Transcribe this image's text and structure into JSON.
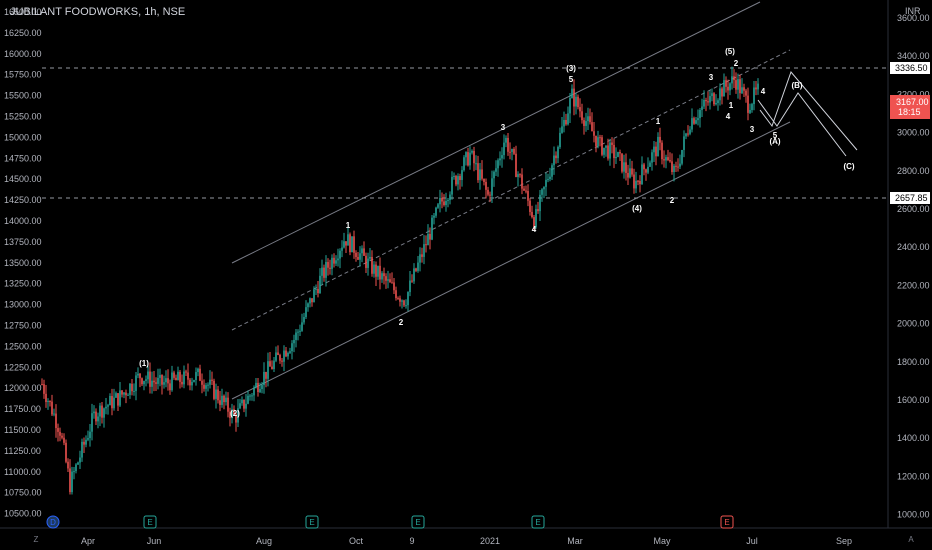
{
  "header": {
    "symbol_title": "JUBILANT FOODWORKS, 1h, NSE"
  },
  "currency_label": "INR",
  "left_axis_ticks": [
    "16500.00",
    "16250.00",
    "16000.00",
    "15750.00",
    "15500.00",
    "15250.00",
    "15000.00",
    "14750.00",
    "14500.00",
    "14250.00",
    "14000.00",
    "13750.00",
    "13500.00",
    "13250.00",
    "13000.00",
    "12750.00",
    "12500.00",
    "12250.00",
    "12000.00",
    "11750.00",
    "11500.00",
    "11250.00",
    "11000.00",
    "10750.00",
    "10500.00"
  ],
  "right_axis_ticks": [
    "3600.00",
    "3400.00",
    "3200.00",
    "3000.00",
    "2800.00",
    "2600.00",
    "2400.00",
    "2200.00",
    "2000.00",
    "1800.00",
    "1600.00",
    "1400.00",
    "1200.00",
    "1000.00"
  ],
  "time_axis_labels": [
    "Apr",
    "Jun",
    "Aug",
    "Oct",
    "9",
    "2021",
    "Mar",
    "May",
    "Jul",
    "Sep"
  ],
  "price_labels": {
    "upper_level": "3336.50",
    "current_price": "3167.00",
    "countdown": "18:15",
    "lower_level": "2657.85"
  },
  "event_badges": [
    "D",
    "E",
    "E",
    "E",
    "E",
    "E"
  ],
  "scale_buttons": {
    "left": "Z",
    "right": "A"
  },
  "wave_labels": [
    "(1)",
    "(2)",
    "1",
    "2",
    "3",
    "4",
    "5",
    "(3)",
    "(4)",
    "1",
    "2",
    "3",
    "4",
    "5",
    "(5)",
    "1",
    "2",
    "3",
    "4",
    "5",
    "(A)",
    "(B)",
    "(C)"
  ],
  "colors": {
    "background": "#000000",
    "up_candle": "#26a69a",
    "down_candle": "#ef5350",
    "current_price_bg": "#ef5350",
    "label_bg": "#ffffff",
    "channel": "#787b86",
    "projection": "#d1d4dc"
  },
  "chart_data": {
    "type": "candlestick",
    "title": "JUBILANT FOODWORKS, 1h, NSE",
    "y_left_range": [
      10400,
      16800
    ],
    "y_right_range": [
      930,
      3700
    ],
    "x_labels": [
      "Apr",
      "Jun",
      "Aug",
      "Oct",
      "9",
      "2021",
      "Mar",
      "May",
      "Jul",
      "Sep"
    ],
    "price_path": [
      [
        "Mar-2020",
        12050
      ],
      [
        "Apr-2020",
        10850
      ],
      [
        "May-2020",
        11800
      ],
      [
        "Jun-2020",
        12150
      ],
      [
        "Jul-2020",
        12000
      ],
      [
        "Jul-2020",
        11600
      ],
      [
        "Aug-2020",
        12400
      ],
      [
        "Sep-2020",
        13800
      ],
      [
        "Oct-2020",
        13300
      ],
      [
        "Oct-2020",
        13000
      ],
      [
        "Nov-2020",
        14300
      ],
      [
        "Dec-2020",
        14800
      ],
      [
        "Dec-2020",
        14300
      ],
      [
        "Jan-2021",
        15000
      ],
      [
        "Feb-2021",
        14000
      ],
      [
        "Mar-2021",
        15500
      ],
      [
        "Apr-2021",
        14800
      ],
      [
        "Apr-2021",
        14450
      ],
      [
        "May-2021",
        14900
      ],
      [
        "May-2021",
        14550
      ],
      [
        "Jun-2021",
        15700
      ],
      [
        "Jun-2021",
        15550
      ],
      [
        "Jul-2021",
        15450
      ],
      [
        "Jul-2021",
        15700
      ]
    ],
    "horizontal_levels": [
      3336.5,
      2657.85
    ],
    "last_price": 3167.0,
    "elliott_waves": [
      "(1)",
      "(2)",
      "(3)",
      "(4)",
      "(5)",
      "(A)",
      "(B)",
      "(C)"
    ]
  }
}
